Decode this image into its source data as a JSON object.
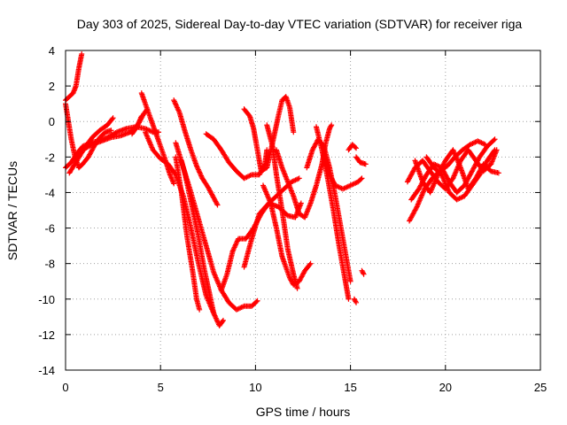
{
  "chart_data": {
    "type": "scatter",
    "title": "Day 303 of 2025, Sidereal Day-to-day VTEC variation (SDTVAR) for receiver riga",
    "xlabel": "GPS time / hours",
    "ylabel": "SDTVAR / TECUs",
    "xlim": [
      0,
      25
    ],
    "ylim": [
      -14,
      4
    ],
    "xticks": [
      0,
      5,
      10,
      15,
      20,
      25
    ],
    "yticks": [
      4,
      2,
      0,
      -2,
      -4,
      -6,
      -8,
      -10,
      -12,
      -14
    ],
    "grid": true,
    "marker": "plus",
    "color": "#ff0000",
    "series": [
      {
        "values": [
          [
            0.0,
            1.2
          ],
          [
            0.2,
            1.4
          ],
          [
            0.4,
            1.6
          ],
          [
            0.55,
            2.0
          ],
          [
            0.7,
            3.0
          ],
          [
            0.85,
            3.8
          ]
        ]
      },
      {
        "values": [
          [
            0.0,
            1.0
          ],
          [
            0.15,
            0.0
          ],
          [
            0.3,
            -1.0
          ],
          [
            0.5,
            -2.0
          ],
          [
            0.7,
            -2.6
          ],
          [
            0.9,
            -2.4
          ],
          [
            1.2,
            -2.0
          ],
          [
            1.5,
            -1.4
          ],
          [
            1.8,
            -0.9
          ],
          [
            2.1,
            -0.6
          ],
          [
            2.4,
            -0.5
          ]
        ]
      },
      {
        "values": [
          [
            0.0,
            -2.6
          ],
          [
            0.3,
            -2.3
          ],
          [
            0.6,
            -1.8
          ],
          [
            0.9,
            -1.4
          ],
          [
            1.3,
            -1.2
          ],
          [
            1.7,
            -1.1
          ],
          [
            2.2,
            -0.9
          ],
          [
            2.7,
            -0.6
          ],
          [
            3.2,
            -0.4
          ],
          [
            3.7,
            -0.3
          ],
          [
            4.2,
            -0.4
          ],
          [
            4.6,
            -0.6
          ],
          [
            4.9,
            -0.6
          ]
        ]
      },
      {
        "values": [
          [
            0.2,
            -2.9
          ],
          [
            0.6,
            -2.2
          ],
          [
            1.0,
            -1.5
          ],
          [
            1.4,
            -0.9
          ],
          [
            1.8,
            -0.5
          ],
          [
            2.2,
            -0.2
          ],
          [
            2.5,
            0.2
          ]
        ]
      },
      {
        "values": [
          [
            0.5,
            -2.0
          ],
          [
            0.9,
            -1.6
          ],
          [
            1.4,
            -1.3
          ],
          [
            1.9,
            -1.1
          ],
          [
            2.4,
            -0.9
          ],
          [
            2.9,
            -0.8
          ],
          [
            3.4,
            -0.6
          ],
          [
            3.8,
            -0.2
          ],
          [
            4.0,
            0.3
          ]
        ]
      },
      {
        "values": [
          [
            3.5,
            -0.7
          ],
          [
            3.7,
            -0.4
          ],
          [
            3.9,
            0.0
          ],
          [
            4.1,
            0.4
          ],
          [
            4.3,
            0.7
          ]
        ]
      },
      {
        "values": [
          [
            4.0,
            1.6
          ],
          [
            4.4,
            0.4
          ],
          [
            4.8,
            -0.8
          ],
          [
            5.2,
            -2.0
          ],
          [
            5.5,
            -3.0
          ],
          [
            5.7,
            -3.5
          ]
        ]
      },
      {
        "values": [
          [
            4.2,
            -0.6
          ],
          [
            4.6,
            -1.6
          ],
          [
            5.0,
            -2.1
          ],
          [
            5.4,
            -2.4
          ],
          [
            5.8,
            -3.0
          ],
          [
            6.2,
            -4.2
          ],
          [
            6.6,
            -6.0
          ],
          [
            7.0,
            -8.0
          ],
          [
            7.4,
            -9.8
          ],
          [
            7.8,
            -10.8
          ],
          [
            8.1,
            -11.5
          ],
          [
            8.3,
            -11.2
          ]
        ]
      },
      {
        "values": [
          [
            5.7,
            1.2
          ],
          [
            6.0,
            0.5
          ],
          [
            6.3,
            -0.6
          ],
          [
            6.6,
            -1.6
          ],
          [
            6.9,
            -2.5
          ],
          [
            7.2,
            -3.2
          ],
          [
            7.5,
            -3.7
          ],
          [
            7.8,
            -4.3
          ],
          [
            8.0,
            -4.7
          ]
        ]
      },
      {
        "values": [
          [
            5.8,
            -1.2
          ],
          [
            6.2,
            -2.6
          ],
          [
            6.6,
            -4.0
          ],
          [
            7.0,
            -5.5
          ],
          [
            7.4,
            -7.0
          ],
          [
            7.8,
            -8.5
          ],
          [
            8.2,
            -9.5
          ],
          [
            8.6,
            -10.2
          ],
          [
            9.0,
            -10.6
          ],
          [
            9.4,
            -10.4
          ],
          [
            9.8,
            -10.4
          ],
          [
            10.1,
            -10.1
          ]
        ]
      },
      {
        "values": [
          [
            5.8,
            -2.0
          ],
          [
            6.1,
            -4.0
          ],
          [
            6.4,
            -6.5
          ],
          [
            6.7,
            -8.5
          ],
          [
            6.9,
            -10.0
          ],
          [
            7.05,
            -10.6
          ]
        ]
      },
      {
        "values": [
          [
            6.1,
            -2.2
          ],
          [
            6.3,
            -3.0
          ],
          [
            6.6,
            -4.5
          ],
          [
            7.0,
            -6.5
          ],
          [
            7.3,
            -8.3
          ],
          [
            7.6,
            -9.8
          ],
          [
            7.8,
            -10.8
          ]
        ]
      },
      {
        "values": [
          [
            7.4,
            -0.7
          ],
          [
            7.8,
            -1.0
          ],
          [
            8.2,
            -1.6
          ],
          [
            8.6,
            -2.3
          ],
          [
            9.0,
            -2.8
          ],
          [
            9.4,
            -3.2
          ],
          [
            9.8,
            -3.0
          ],
          [
            10.2,
            -3.0
          ],
          [
            10.5,
            -2.4
          ],
          [
            10.6,
            -1.6
          ]
        ]
      },
      {
        "values": [
          [
            8.2,
            -9.5
          ],
          [
            8.5,
            -8.6
          ],
          [
            8.8,
            -7.3
          ],
          [
            9.1,
            -6.6
          ],
          [
            9.5,
            -6.6
          ],
          [
            9.9,
            -6.0
          ],
          [
            10.3,
            -5.2
          ],
          [
            10.7,
            -4.6
          ],
          [
            11.1,
            -4.2
          ],
          [
            11.5,
            -3.8
          ],
          [
            11.9,
            -3.4
          ],
          [
            12.3,
            -3.2
          ]
        ]
      },
      {
        "values": [
          [
            9.4,
            -8.2
          ],
          [
            9.8,
            -6.6
          ],
          [
            10.2,
            -5.2
          ],
          [
            10.7,
            -4.6
          ],
          [
            11.2,
            -4.8
          ],
          [
            11.7,
            -5.3
          ],
          [
            12.1,
            -5.4
          ],
          [
            12.4,
            -4.6
          ]
        ]
      },
      {
        "values": [
          [
            9.4,
            0.7
          ],
          [
            9.7,
            0.3
          ],
          [
            9.9,
            -0.4
          ],
          [
            10.1,
            -1.6
          ],
          [
            10.3,
            -2.8
          ],
          [
            10.6,
            -2.6
          ],
          [
            10.9,
            -1.2
          ],
          [
            11.2,
            0.3
          ],
          [
            11.4,
            1.2
          ],
          [
            11.6,
            1.4
          ],
          [
            11.8,
            0.8
          ],
          [
            12.0,
            -0.6
          ]
        ]
      },
      {
        "values": [
          [
            10.4,
            -3.6
          ],
          [
            10.8,
            -4.6
          ],
          [
            11.1,
            -6.0
          ],
          [
            11.4,
            -7.6
          ],
          [
            11.8,
            -8.8
          ],
          [
            12.0,
            -9.2
          ],
          [
            12.3,
            -9.0
          ],
          [
            12.6,
            -8.4
          ],
          [
            12.9,
            -8.0
          ]
        ]
      },
      {
        "values": [
          [
            10.6,
            -0.2
          ],
          [
            10.9,
            -1.4
          ],
          [
            11.1,
            -3.0
          ],
          [
            11.4,
            -5.0
          ],
          [
            11.7,
            -7.2
          ],
          [
            12.0,
            -8.6
          ],
          [
            12.2,
            -9.4
          ]
        ]
      },
      {
        "values": [
          [
            11.1,
            -1.6
          ],
          [
            11.4,
            -2.6
          ],
          [
            11.7,
            -3.4
          ],
          [
            12.0,
            -4.2
          ],
          [
            12.3,
            -5.2
          ],
          [
            12.6,
            -5.4
          ],
          [
            12.9,
            -4.6
          ],
          [
            13.2,
            -3.6
          ],
          [
            13.5,
            -2.4
          ],
          [
            13.7,
            -1.2
          ],
          [
            13.9,
            -0.4
          ],
          [
            14.0,
            -0.2
          ]
        ]
      },
      {
        "values": [
          [
            12.7,
            -2.6
          ],
          [
            13.0,
            -1.6
          ],
          [
            13.3,
            -1.0
          ],
          [
            13.6,
            -1.4
          ],
          [
            13.9,
            -2.6
          ],
          [
            14.2,
            -4.2
          ],
          [
            14.5,
            -6.0
          ],
          [
            14.8,
            -7.8
          ],
          [
            15.0,
            -9.0
          ]
        ]
      },
      {
        "values": [
          [
            13.2,
            -0.3
          ],
          [
            13.5,
            -1.6
          ],
          [
            13.8,
            -3.2
          ],
          [
            14.1,
            -5.0
          ],
          [
            14.4,
            -7.0
          ],
          [
            14.7,
            -8.8
          ],
          [
            14.9,
            -10.0
          ]
        ]
      },
      {
        "values": [
          [
            13.6,
            -2.0
          ],
          [
            13.9,
            -3.0
          ],
          [
            14.2,
            -3.6
          ],
          [
            14.6,
            -3.8
          ],
          [
            15.0,
            -3.6
          ],
          [
            15.4,
            -3.4
          ],
          [
            15.6,
            -3.2
          ]
        ]
      },
      {
        "values": [
          [
            14.9,
            -1.6
          ],
          [
            15.1,
            -1.3
          ],
          [
            15.3,
            -1.5
          ]
        ]
      },
      {
        "values": [
          [
            15.3,
            -2.0
          ],
          [
            15.5,
            -2.3
          ],
          [
            15.8,
            -2.4
          ]
        ]
      },
      {
        "values": [
          [
            15.2,
            -10.0
          ],
          [
            15.3,
            -10.2
          ]
        ]
      },
      {
        "values": [
          [
            15.6,
            -8.4
          ],
          [
            15.7,
            -8.6
          ]
        ]
      },
      {
        "values": [
          [
            18.1,
            -5.6
          ],
          [
            18.5,
            -4.8
          ],
          [
            18.9,
            -3.8
          ],
          [
            19.3,
            -3.2
          ],
          [
            19.7,
            -2.8
          ],
          [
            20.1,
            -2.5
          ],
          [
            20.5,
            -2.0
          ],
          [
            20.9,
            -1.6
          ],
          [
            21.3,
            -1.3
          ],
          [
            21.7,
            -1.1
          ],
          [
            22.1,
            -1.3
          ]
        ]
      },
      {
        "values": [
          [
            18.0,
            -3.4
          ],
          [
            18.4,
            -2.6
          ],
          [
            18.8,
            -2.2
          ],
          [
            19.2,
            -2.8
          ],
          [
            19.6,
            -3.4
          ],
          [
            20.0,
            -3.8
          ],
          [
            20.4,
            -3.2
          ],
          [
            20.8,
            -2.2
          ],
          [
            21.2,
            -1.6
          ],
          [
            21.6,
            -2.2
          ],
          [
            22.0,
            -2.8
          ],
          [
            22.4,
            -2.4
          ],
          [
            22.7,
            -1.6
          ]
        ]
      },
      {
        "values": [
          [
            18.2,
            -4.4
          ],
          [
            18.6,
            -3.8
          ],
          [
            19.0,
            -3.0
          ],
          [
            19.4,
            -2.4
          ],
          [
            19.8,
            -2.6
          ],
          [
            20.2,
            -3.4
          ],
          [
            20.6,
            -4.0
          ],
          [
            21.0,
            -3.6
          ],
          [
            21.4,
            -2.8
          ],
          [
            21.8,
            -2.0
          ],
          [
            22.2,
            -1.4
          ],
          [
            22.6,
            -1.0
          ]
        ]
      },
      {
        "values": [
          [
            18.4,
            -2.2
          ],
          [
            18.8,
            -3.4
          ],
          [
            19.2,
            -4.0
          ],
          [
            19.6,
            -3.0
          ],
          [
            20.0,
            -2.2
          ],
          [
            20.4,
            -1.6
          ],
          [
            20.8,
            -2.6
          ],
          [
            21.2,
            -3.8
          ],
          [
            21.6,
            -3.2
          ],
          [
            22.0,
            -2.4
          ],
          [
            22.4,
            -2.8
          ],
          [
            22.8,
            -2.9
          ]
        ]
      },
      {
        "values": [
          [
            19.0,
            -2.0
          ],
          [
            19.4,
            -2.6
          ],
          [
            19.8,
            -3.0
          ],
          [
            20.2,
            -4.0
          ],
          [
            20.6,
            -4.4
          ],
          [
            21.0,
            -4.2
          ],
          [
            21.4,
            -3.6
          ],
          [
            21.8,
            -3.0
          ],
          [
            22.2,
            -2.2
          ],
          [
            22.6,
            -1.6
          ]
        ]
      }
    ]
  }
}
